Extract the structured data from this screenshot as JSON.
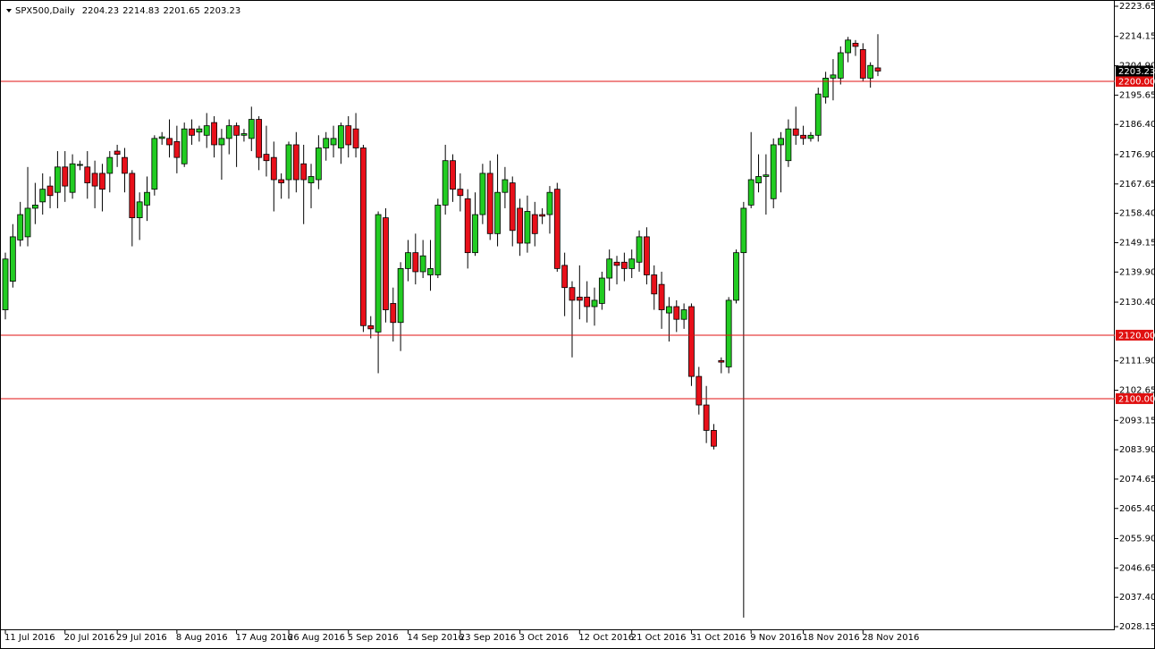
{
  "chart_data": {
    "type": "candlestick",
    "title": "SPX500,Daily",
    "up_color": "#22cc22",
    "down_color": "#e8101a",
    "wick_color": "#000000",
    "line_color": "#e01010",
    "ylim": [
      2028.15,
      2223.65
    ],
    "yticks": [
      2223.65,
      2214.15,
      {
        "value": 2204.9,
        "label": "2204.90"
      },
      2195.65,
      {
        "value": 2186.4,
        "label": "2186.40"
      },
      {
        "value": 2176.9,
        "label": "2176.90"
      },
      2167.65,
      {
        "value": 2158.4,
        "label": "2158.40"
      },
      2149.15,
      {
        "value": 2139.9,
        "label": "2139.90"
      },
      {
        "value": 2130.4,
        "label": "2130.40"
      },
      {
        "value": 2111.9,
        "label": "2111.90"
      },
      2102.65,
      2093.15,
      {
        "value": 2083.9,
        "label": "2083.90"
      },
      2074.65,
      {
        "value": 2065.4,
        "label": "2065.40"
      },
      {
        "value": 2055.9,
        "label": "2055.90"
      },
      2046.65,
      {
        "value": 2037.4,
        "label": "2037.40"
      },
      2028.15
    ],
    "hlines": [
      {
        "value": 2200,
        "label": "2200.00"
      },
      {
        "value": 2120,
        "label": "2120.00"
      },
      {
        "value": 2100,
        "label": "2100.00"
      }
    ],
    "categories": [
      "11 Jul 2016",
      null,
      null,
      null,
      null,
      null,
      null,
      null,
      "20 Jul 2016",
      null,
      null,
      null,
      null,
      null,
      null,
      "29 Jul 2016",
      null,
      null,
      null,
      null,
      null,
      null,
      null,
      "8 Aug 2016",
      null,
      null,
      null,
      null,
      null,
      null,
      null,
      "17 Aug 2016",
      null,
      null,
      null,
      null,
      null,
      null,
      "26 Aug 2016",
      null,
      null,
      null,
      null,
      null,
      null,
      null,
      "5 Sep 2016",
      null,
      null,
      null,
      null,
      null,
      null,
      null,
      "14 Sep 2016",
      null,
      null,
      null,
      null,
      null,
      null,
      "23 Sep 2016",
      null,
      null,
      null,
      null,
      null,
      null,
      null,
      "3 Oct 2016",
      null,
      null,
      null,
      null,
      null,
      null,
      null,
      "12 Oct 2016",
      null,
      null,
      null,
      null,
      null,
      null,
      "21 Oct 2016",
      null,
      null,
      null,
      null,
      null,
      null,
      null,
      "31 Oct 2016",
      null,
      null,
      null,
      null,
      null,
      null,
      null,
      "9 Nov 2016",
      null,
      null,
      null,
      null,
      null,
      null,
      "18 Nov 2016",
      null,
      null,
      null,
      null,
      null,
      null,
      null,
      "28 Nov 2016",
      null,
      null
    ],
    "open": [
      2128,
      2137,
      2150,
      2151,
      2160,
      2162,
      2167,
      2165,
      2173,
      2165,
      2173.5,
      2173,
      2171,
      2171,
      2171,
      2178,
      2176,
      2171,
      2157,
      2161,
      2166,
      2182,
      2182,
      2181,
      2174,
      2185,
      2184,
      2183,
      2187,
      2180,
      2182,
      2186,
      2183,
      2182,
      2188,
      2177,
      2176,
      2169,
      2169,
      2180,
      2174,
      2168,
      2169,
      2179,
      2180,
      2179,
      2186,
      2185,
      2179,
      2123,
      2121,
      2157,
      2130,
      2124,
      2141,
      2146,
      2140,
      2139,
      2139,
      2161,
      2175,
      2166,
      2163,
      2146,
      2158,
      2171,
      2152,
      2165,
      2168,
      2160,
      2149,
      2158,
      2158,
      2158,
      2166,
      2142,
      2135,
      2132,
      2132,
      2129,
      2130,
      2138,
      2143,
      2143,
      2141,
      2143,
      2151,
      2139,
      2136,
      2127,
      2129,
      2125,
      2129,
      2107,
      2098,
      2090,
      2112,
      2110,
      2131,
      2146,
      2161,
      2168,
      2170,
      2163,
      2180,
      2175,
      2185,
      2183,
      2182,
      2183,
      2195,
      2201,
      2201,
      2209,
      2212,
      2210,
      2201,
      2204.23
    ],
    "high": [
      2146,
      2155,
      2162,
      2173,
      2168,
      2171,
      2170,
      2178,
      2178,
      2177,
      2175,
      2178,
      2175,
      2174,
      2178,
      2180,
      2179,
      2172,
      2165,
      2170,
      2183,
      2184,
      2188,
      2186,
      2187,
      2188,
      2186,
      2190,
      2189,
      2185,
      2188,
      2187,
      2185,
      2192,
      2189,
      2186,
      2181,
      2171,
      2181,
      2184,
      2180,
      2174,
      2183,
      2184,
      2186,
      2187,
      2189,
      2190,
      2180,
      2126,
      2159,
      2160,
      2135,
      2143,
      2150,
      2152,
      2150,
      2150,
      2163,
      2180,
      2177,
      2171,
      2166,
      2165,
      2174,
      2175,
      2177,
      2173,
      2170,
      2163,
      2164,
      2162,
      2160,
      2167,
      2168,
      2146,
      2137,
      2142,
      2137,
      2135,
      2140,
      2147,
      2145,
      2146,
      2147,
      2153,
      2154,
      2142,
      2140,
      2132,
      2131,
      2130,
      2130,
      2110,
      2104,
      2092,
      2113,
      2132,
      2147,
      2162,
      2184,
      2177,
      2177,
      2182,
      2184,
      2188,
      2192,
      2186,
      2184,
      2198,
      2203,
      2207,
      2211,
      2214,
      2213,
      2212,
      2206,
      2214.83
    ],
    "low": [
      2125,
      2135,
      2148,
      2148,
      2155,
      2158,
      2160,
      2160,
      2162,
      2163,
      2172,
      2163,
      2160,
      2159,
      2165,
      2173,
      2165,
      2148,
      2150,
      2156,
      2164,
      2180,
      2176,
      2171,
      2173,
      2180,
      2181,
      2179,
      2176,
      2169,
      2177,
      2173,
      2181,
      2178,
      2172,
      2170,
      2159,
      2163,
      2163,
      2165,
      2155,
      2160,
      2166,
      2175,
      2176,
      2174,
      2176,
      2176,
      2121,
      2119,
      2108,
      2124,
      2118,
      2115,
      2137,
      2136,
      2138,
      2134,
      2138,
      2158,
      2162,
      2159,
      2141,
      2145,
      2155,
      2150,
      2148,
      2160,
      2148,
      2145,
      2146,
      2148,
      2155,
      2152,
      2140,
      2126,
      2113,
      2125,
      2124,
      2123,
      2128,
      2134,
      2136,
      2137,
      2138,
      2140,
      2136,
      2128,
      2122,
      2118,
      2121,
      2122,
      2104,
      2095,
      2086,
      2084,
      2108,
      2108,
      2130,
      2031,
      2160,
      2165,
      2158,
      2160,
      2165,
      2173,
      2180,
      2180,
      2181,
      2181,
      2193,
      2194,
      2199,
      2206,
      2208,
      2200,
      2198,
      2201.65
    ],
    "close": [
      2144,
      2151,
      2158,
      2160,
      2161,
      2166,
      2164,
      2173,
      2167,
      2174,
      2173.8,
      2168,
      2167,
      2166,
      2176,
      2177,
      2171,
      2157,
      2162,
      2165,
      2182,
      2182.5,
      2180,
      2176,
      2185,
      2183,
      2185,
      2186,
      2180,
      2182,
      2186,
      2183,
      2183.5,
      2188,
      2176,
      2175,
      2169,
      2168,
      2180,
      2169,
      2169,
      2170,
      2179,
      2182,
      2182,
      2186,
      2180,
      2179,
      2123,
      2122,
      2158,
      2128,
      2124,
      2141,
      2146,
      2140,
      2145,
      2141,
      2161,
      2175,
      2166,
      2164,
      2146,
      2158,
      2171,
      2152,
      2165,
      2169,
      2153,
      2149,
      2159,
      2152,
      2157.5,
      2165,
      2141,
      2135,
      2131,
      2131,
      2129,
      2131,
      2138,
      2144,
      2142,
      2141,
      2144,
      2151,
      2139,
      2133,
      2128,
      2129,
      2125,
      2128,
      2107,
      2098,
      2090,
      2085,
      2111.5,
      2131,
      2146,
      2160,
      2169,
      2170,
      2170.5,
      2180,
      2182,
      2185,
      2183,
      2182,
      2183,
      2196,
      2201,
      2202,
      2209,
      2213,
      2211,
      2201,
      2205,
      2203.23
    ]
  }
}
